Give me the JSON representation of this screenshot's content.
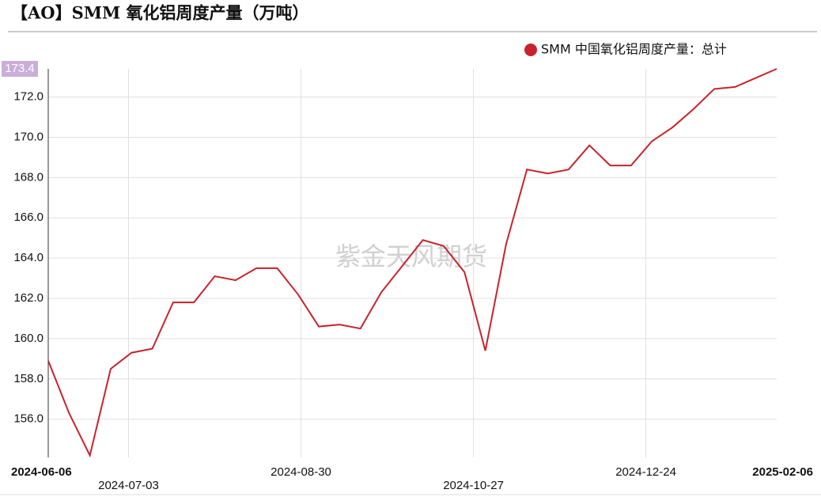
{
  "chart_data": {
    "type": "line",
    "title": "【AO】SMM 氧化铝周度产量（万吨）",
    "watermark": "紫金天风期货",
    "x": [
      "2024-06-06",
      "2024-06-13",
      "2024-06-20",
      "2024-06-27",
      "2024-07-04",
      "2024-07-11",
      "2024-07-18",
      "2024-07-25",
      "2024-08-01",
      "2024-08-08",
      "2024-08-15",
      "2024-08-22",
      "2024-08-29",
      "2024-09-05",
      "2024-09-12",
      "2024-09-19",
      "2024-09-26",
      "2024-10-03",
      "2024-10-10",
      "2024-10-17",
      "2024-10-24",
      "2024-10-31",
      "2024-11-07",
      "2024-11-14",
      "2024-11-21",
      "2024-11-28",
      "2024-12-05",
      "2024-12-12",
      "2024-12-19",
      "2024-12-26",
      "2025-01-02",
      "2025-01-09",
      "2025-01-16",
      "2025-01-23",
      "2025-01-30",
      "2025-02-06"
    ],
    "series": [
      {
        "name": "SMM 中国氧化铝周度产量：总计",
        "color": "#c8232c",
        "values": [
          158.9,
          156.3,
          154.2,
          158.5,
          159.3,
          159.5,
          161.8,
          161.8,
          163.1,
          162.9,
          163.5,
          163.5,
          162.2,
          160.6,
          160.7,
          160.5,
          162.3,
          163.6,
          164.9,
          164.6,
          163.3,
          159.4,
          164.7,
          168.4,
          168.2,
          168.4,
          169.6,
          168.6,
          168.6,
          169.8,
          170.5,
          171.4,
          172.4,
          172.5,
          172.95,
          173.4
        ]
      }
    ],
    "xlim": [
      "2024-06-06",
      "2025-02-06"
    ],
    "xticks": [
      "2024-06-06",
      "2024-07-03",
      "2024-08-30",
      "2024-10-27",
      "2024-12-24",
      "2025-02-06"
    ],
    "ylim": [
      154.1,
      173.4
    ],
    "yticks": [
      {
        "value": 156,
        "label": "156.0"
      },
      {
        "value": 158,
        "label": "158.0"
      },
      {
        "value": 160,
        "label": "160.0"
      },
      {
        "value": 162,
        "label": "162.0"
      },
      {
        "value": 164,
        "label": "164.0"
      },
      {
        "value": 166,
        "label": "166.0"
      },
      {
        "value": 168,
        "label": "168.0"
      },
      {
        "value": 170,
        "label": "170.0"
      },
      {
        "value": 172,
        "label": "172.0"
      }
    ],
    "grid": true,
    "legend": "top-right"
  }
}
